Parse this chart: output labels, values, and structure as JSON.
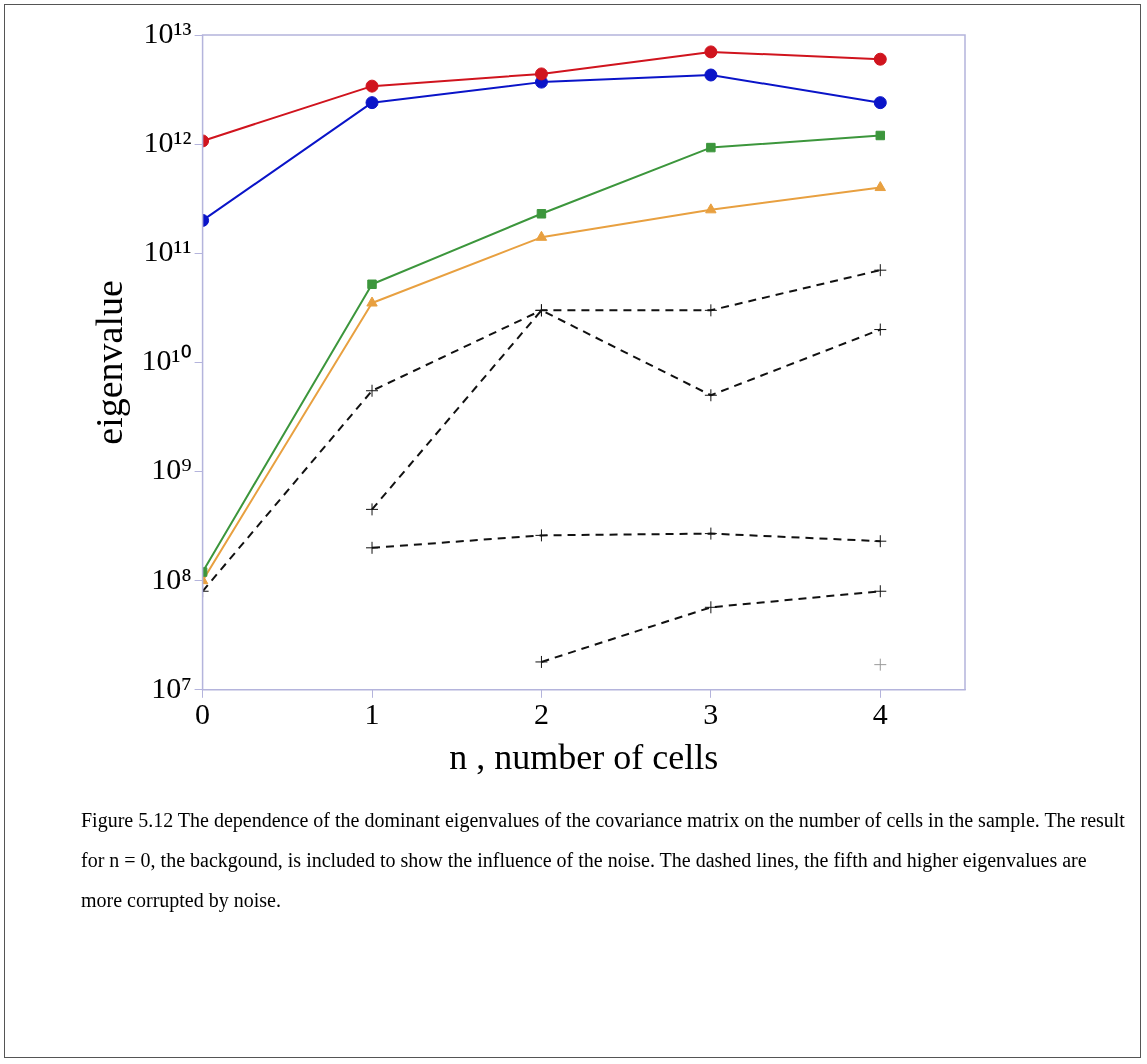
{
  "chart_data": {
    "type": "line",
    "xlabel": "n , number of cells",
    "ylabel": "eigenvalue",
    "x": [
      0,
      1,
      2,
      3,
      4
    ],
    "series": [
      {
        "color": "#d0141e",
        "marker": "circle",
        "line_style": "solid",
        "values": [
          1070000000000.0,
          3400000000000.0,
          4400000000000.0,
          7000000000000.0,
          6000000000000.0
        ]
      },
      {
        "color": "#0a14c8",
        "marker": "circle",
        "line_style": "solid",
        "values": [
          200000000000.0,
          2400000000000.0,
          3700000000000.0,
          4300000000000.0,
          2400000000000.0
        ]
      },
      {
        "color": "#3c963c",
        "marker": "square",
        "line_style": "solid",
        "values": [
          120000000.0,
          52000000000.0,
          230000000000.0,
          930000000000.0,
          1200000000000.0
        ]
      },
      {
        "color": "#e8a040",
        "marker": "triangle",
        "line_style": "solid",
        "values": [
          100000000.0,
          35000000000.0,
          140000000000.0,
          250000000000.0,
          400000000000.0
        ]
      },
      {
        "color": "#111111",
        "marker": "cross",
        "line_style": "dashed",
        "values": [
          80000000.0,
          5500000000.0,
          30000000000.0,
          30000000000.0,
          70000000000.0
        ]
      },
      {
        "color": "#111111",
        "marker": "cross",
        "line_style": "dashed",
        "values": [
          null,
          450000000.0,
          30000000000.0,
          5000000000.0,
          20000000000.0
        ]
      },
      {
        "color": "#111111",
        "marker": "cross",
        "line_style": "dashed",
        "values": [
          null,
          200000000.0,
          260000000.0,
          270000000.0,
          230000000.0
        ]
      },
      {
        "color": "#111111",
        "marker": "cross",
        "line_style": "dashed",
        "values": [
          null,
          null,
          18000000.0,
          57000000.0,
          80000000.0
        ]
      },
      {
        "color": "#999999",
        "marker": "cross",
        "line_style": "dotted",
        "values": [
          null,
          null,
          null,
          null,
          17000000.0
        ]
      }
    ],
    "log": "y",
    "xlim": [
      0,
      4.5
    ],
    "xticks": [
      0,
      1,
      2,
      3,
      4
    ],
    "ylim": [
      10000000.0,
      10000000000000.0
    ],
    "yticks": [
      {
        "value": 10000000.0,
        "label": "10⁷"
      },
      {
        "value": 100000000.0,
        "label": "10⁸"
      },
      {
        "value": 1000000000.0,
        "label": "10⁹"
      },
      {
        "value": 10000000000.0,
        "label": "10¹⁰"
      },
      {
        "value": 100000000000.0,
        "label": "10¹¹"
      },
      {
        "value": 1000000000000.0,
        "label": "10¹²"
      },
      {
        "value": 10000000000000.0,
        "label": "10¹³"
      }
    ],
    "grid": false,
    "legend": false,
    "annotations": [
      "Figure 5.12 The dependence of the dominant eigenvalues of the covariance matrix on the number of cells in the sample. The result for n = 0, the backgound, is included to show the influence of the noise. The dashed lines, the fifth and higher eigenvalues are more corrupted by noise."
    ]
  }
}
